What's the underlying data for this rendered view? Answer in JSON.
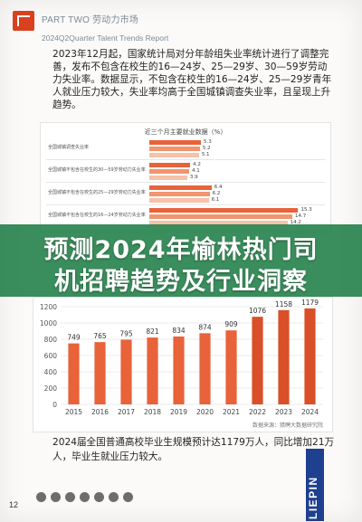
{
  "header": {
    "part": "PART TWO 劳动力市场",
    "subtitle": "2024Q2Quarter Talent Trends Report",
    "page_number": "12"
  },
  "paragraph_top": "2023年12月起，国家统计局对分年龄组失业率统计进行了调整完善，发布不包含在校生的16—24岁、25—29岁、30—59岁劳动力失业率。数据显示，不包含在校生的16—24岁、25—29岁青年人就业压力较大，失业率均高于全国城镇调查失业率，且呈现上升趋势。",
  "top_chart": {
    "title": "近三个月主要就业数据（%）",
    "colors": [
      "#e8623a",
      "#f0956f",
      "#f6c2a8"
    ],
    "groups": [
      {
        "label": "全国城镇调查失业率",
        "values": [
          5.3,
          5.2,
          5.1
        ]
      },
      {
        "label": "全国城镇不包含在校生的30—59岁劳动力失业率",
        "values": [
          4.2,
          4.1,
          3.9
        ]
      },
      {
        "label": "全国城镇不包含在校生的25—29岁劳动力失业率",
        "values": [
          6.4,
          6.2,
          6.1
        ]
      },
      {
        "label": "全国城镇不包含在校生的16—24岁劳动力失业率",
        "values": [
          15.3,
          14.7,
          14.2
        ]
      }
    ]
  },
  "banner": {
    "line1": "预测2024年榆林热门司",
    "line2": "机招聘趋势及行业洞察"
  },
  "chart_data": {
    "type": "bar",
    "categories": [
      "2015",
      "2016",
      "2017",
      "2018",
      "2019",
      "2020",
      "2021",
      "2022",
      "2023",
      "2024"
    ],
    "values": [
      749,
      765,
      795,
      821,
      834,
      874,
      909,
      1076,
      1158,
      1179
    ],
    "ylim": [
      0,
      1200
    ],
    "yticks": [
      0,
      200,
      400,
      600,
      800,
      1000,
      1200
    ],
    "bar_color": "#e8623a",
    "bar_color_dark": "#d94f28",
    "source": "数据来源：猎聘大数据研究院"
  },
  "paragraph_bottom": "2024届全国普通高校毕业生规模预计达1179万人，同比增加21万人，毕业生就业压力较大。",
  "brand": "LIEPIN"
}
